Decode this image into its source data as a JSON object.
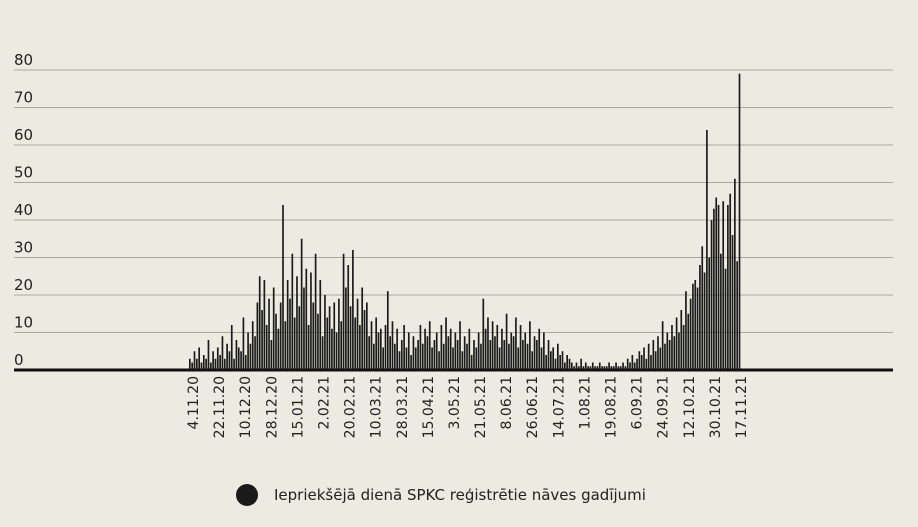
{
  "chart_data": {
    "type": "bar",
    "title": "",
    "xlabel": "",
    "ylabel": "",
    "ylim": [
      0,
      80
    ],
    "yticks": [
      0,
      10,
      20,
      30,
      40,
      50,
      60,
      70,
      80
    ],
    "grid": true,
    "legend_position": "bottom",
    "xtick_labels": [
      "4.11.20",
      "22.11.20",
      "10.12.20",
      "28.12.20",
      "15.01.21",
      "2.02.21",
      "20.02.21",
      "10.03.21",
      "28.03.21",
      "15.04.21",
      "3.05.21",
      "21.05.21",
      "8.06.21",
      "26.06.21",
      "14.07.21",
      "1.08.21",
      "19.08.21",
      "6.09.21",
      "24.09.21",
      "12.10.21",
      "30.10.21",
      "17.11.21"
    ],
    "series": [
      {
        "name": "Iepriekšējā dienā SPKC reģistrētie nāves gadījumi",
        "color": "#1a1a1a",
        "values": [
          3,
          2,
          5,
          3,
          6,
          2,
          4,
          3,
          8,
          2,
          5,
          3,
          6,
          4,
          9,
          3,
          7,
          5,
          12,
          3,
          8,
          6,
          5,
          14,
          4,
          10,
          7,
          13,
          9,
          18,
          25,
          16,
          24,
          12,
          19,
          8,
          22,
          15,
          11,
          18,
          44,
          13,
          24,
          19,
          31,
          14,
          25,
          17,
          35,
          22,
          27,
          12,
          26,
          18,
          31,
          15,
          24,
          9,
          20,
          14,
          17,
          11,
          18,
          10,
          19,
          13,
          31,
          22,
          28,
          17,
          32,
          14,
          19,
          12,
          22,
          16,
          18,
          9,
          13,
          7,
          14,
          10,
          11,
          6,
          12,
          21,
          9,
          13,
          7,
          11,
          5,
          8,
          12,
          6,
          10,
          4,
          9,
          6,
          8,
          12,
          7,
          11,
          9,
          13,
          6,
          8,
          10,
          5,
          12,
          7,
          14,
          9,
          11,
          6,
          10,
          8,
          13,
          5,
          9,
          7,
          11,
          4,
          8,
          6,
          10,
          7,
          19,
          11,
          14,
          8,
          13,
          9,
          12,
          6,
          11,
          8,
          15,
          7,
          10,
          9,
          14,
          6,
          12,
          8,
          10,
          7,
          13,
          5,
          9,
          8,
          11,
          6,
          10,
          4,
          8,
          5,
          6,
          3,
          7,
          4,
          5,
          2,
          4,
          3,
          2,
          1,
          2,
          1,
          3,
          1,
          2,
          1,
          1,
          2,
          1,
          1,
          2,
          1,
          1,
          1,
          2,
          1,
          1,
          2,
          1,
          1,
          2,
          1,
          3,
          2,
          4,
          2,
          3,
          5,
          4,
          6,
          3,
          7,
          4,
          8,
          5,
          9,
          6,
          13,
          7,
          10,
          8,
          12,
          9,
          14,
          10,
          16,
          12,
          21,
          15,
          19,
          23,
          24,
          22,
          28,
          33,
          26,
          64,
          30,
          40,
          43,
          46,
          44,
          31,
          45,
          27,
          44,
          47,
          36,
          51,
          29,
          79
        ]
      }
    ]
  },
  "legend": {
    "label": "Iepriekšējā dienā SPKC reģistrētie nāves gadījumi"
  }
}
